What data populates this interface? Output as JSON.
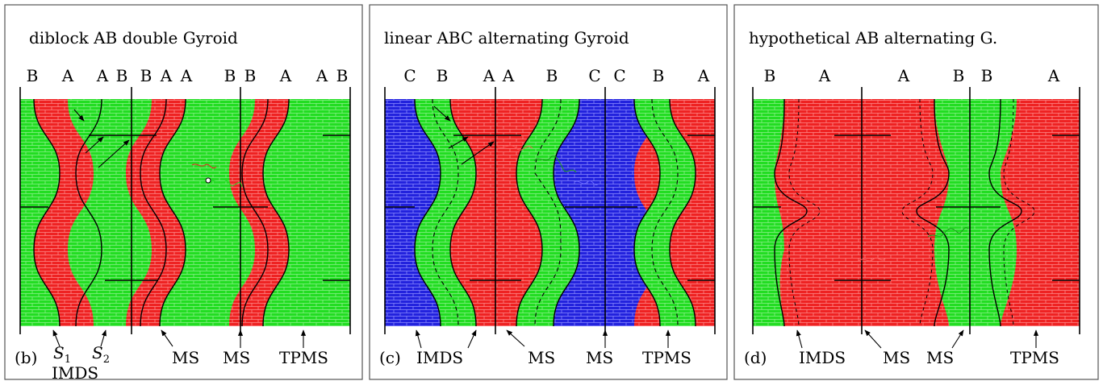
{
  "colors": {
    "A": "#ee2222",
    "B": "#22dd22",
    "C": "#2222dd",
    "mortar_A": "#ff8a8a",
    "mortar_B": "#8cf08c",
    "mortar_C": "#8a8aff",
    "line": "#000000",
    "frame": "#555555"
  },
  "panels": [
    {
      "title": "diblock AB double Gyroid",
      "letter": "(b)",
      "top_labels": [
        "B",
        "A",
        "A",
        "B",
        "B",
        "A",
        "A",
        "B",
        "B",
        "A",
        "A",
        "B"
      ],
      "bottom_labels": [
        "S",
        "1",
        "S",
        "2",
        "IMDS",
        "MS",
        "MS",
        "TPMS"
      ]
    },
    {
      "title": "linear ABC alternating Gyroid",
      "letter": "(c)",
      "top_labels": [
        "C",
        "B",
        "A",
        "A",
        "B",
        "C",
        "C",
        "B",
        "A"
      ],
      "bottom_labels": [
        "IMDS",
        "MS",
        "MS",
        "TPMS"
      ]
    },
    {
      "title": "hypothetical AB alternating G.",
      "letter": "(d)",
      "top_labels": [
        "B",
        "A",
        "A",
        "B",
        "B",
        "A"
      ],
      "bottom_labels": [
        "IMDS",
        "MS",
        "MS",
        "TPMS"
      ]
    }
  ]
}
